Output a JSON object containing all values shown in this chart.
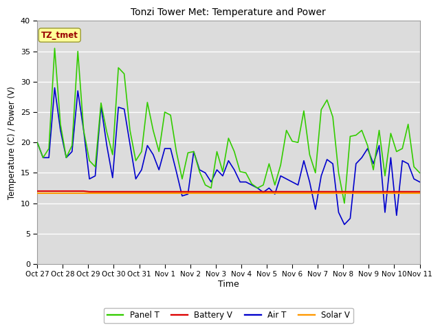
{
  "title": "Tonzi Tower Met: Temperature and Power",
  "xlabel": "Time",
  "ylabel": "Temperature (C) / Power (V)",
  "ylim": [
    0,
    40
  ],
  "yticks": [
    0,
    5,
    10,
    15,
    20,
    25,
    30,
    35,
    40
  ],
  "x_labels": [
    "Oct 27",
    "Oct 28",
    "Oct 29",
    "Oct 30",
    "Oct 31",
    "Nov 1",
    "Nov 2",
    "Nov 3",
    "Nov 4",
    "Nov 5",
    "Nov 6",
    "Nov 7",
    "Nov 8",
    "Nov 9",
    "Nov 10",
    "Nov 11"
  ],
  "bg_color": "#dcdcdc",
  "fig_color": "#ffffff",
  "annotation_text": "TZ_tmet",
  "annotation_bg": "#ffff99",
  "annotation_border": "#999933",
  "annotation_color": "#990000",
  "panel_t_color": "#33cc00",
  "battery_v_color": "#dd0000",
  "air_t_color": "#0000cc",
  "solar_v_color": "#ff9900",
  "line_width": 1.2,
  "panel_t": [
    20.0,
    17.5,
    19.0,
    35.5,
    23.0,
    17.5,
    19.5,
    35.0,
    22.0,
    17.0,
    16.0,
    26.5,
    21.7,
    18.0,
    32.3,
    31.3,
    22.0,
    17.0,
    18.5,
    26.6,
    22.0,
    18.5,
    25.0,
    24.5,
    18.5,
    14.0,
    18.3,
    18.5,
    15.2,
    13.0,
    12.5,
    18.5,
    15.2,
    20.7,
    18.5,
    15.2,
    15.0,
    13.2,
    12.5,
    13.0,
    16.5,
    13.0,
    16.3,
    22.0,
    20.2,
    20.0,
    25.2,
    18.0,
    15.0,
    25.4,
    27.0,
    24.2,
    15.0,
    10.0,
    21.0,
    21.2,
    22.0,
    19.5,
    15.5,
    22.0,
    14.5,
    21.5,
    18.5,
    19.0,
    23.0,
    16.0,
    15.0
  ],
  "battery_v": [
    12.0,
    12.0,
    12.0,
    12.0,
    12.0,
    12.0,
    12.0,
    12.0,
    12.0,
    11.9,
    11.9,
    11.9,
    11.9,
    11.9,
    11.9,
    11.9,
    11.9,
    11.9,
    11.9,
    11.9,
    11.9,
    11.9,
    11.9,
    11.9,
    11.9,
    11.9,
    11.9,
    11.9,
    11.9,
    11.9,
    11.9,
    11.9,
    11.9,
    11.9,
    11.9,
    11.9,
    11.9,
    11.9,
    11.9,
    11.9,
    11.9,
    11.9,
    11.9,
    11.9,
    11.9,
    11.9,
    11.9,
    11.9,
    11.9,
    11.9,
    11.9,
    11.9,
    11.9,
    11.9,
    11.9,
    11.9,
    11.9,
    11.9,
    11.9,
    11.9,
    11.9,
    11.9,
    11.9,
    11.9,
    11.9,
    11.9,
    11.9
  ],
  "air_t": [
    20.0,
    17.5,
    17.5,
    29.0,
    22.0,
    17.5,
    18.5,
    28.5,
    22.0,
    14.0,
    14.5,
    26.0,
    19.5,
    14.2,
    25.8,
    25.5,
    19.7,
    14.0,
    15.5,
    19.5,
    18.0,
    15.5,
    19.0,
    19.0,
    15.2,
    11.2,
    11.5,
    18.5,
    15.5,
    15.0,
    13.5,
    15.5,
    14.5,
    17.0,
    15.5,
    13.5,
    13.5,
    13.0,
    12.5,
    11.8,
    12.5,
    11.5,
    14.5,
    14.0,
    13.5,
    13.0,
    17.0,
    13.5,
    9.0,
    14.5,
    17.2,
    16.5,
    8.5,
    6.5,
    7.5,
    16.5,
    17.5,
    19.0,
    16.5,
    19.5,
    8.5,
    17.5,
    8.0,
    17.0,
    16.5,
    14.0,
    13.5
  ],
  "solar_v": [
    11.7,
    11.7,
    11.7,
    11.7,
    11.7,
    11.7,
    11.7,
    11.7,
    11.7,
    11.7,
    11.7,
    11.7,
    11.7,
    11.7,
    11.7,
    11.7,
    11.7,
    11.7,
    11.7,
    11.7,
    11.7,
    11.7,
    11.7,
    11.7,
    11.7,
    11.7,
    11.7,
    11.7,
    11.7,
    11.7,
    11.7,
    11.7,
    11.7,
    11.7,
    11.7,
    11.7,
    11.7,
    11.7,
    11.7,
    11.7,
    11.7,
    11.7,
    11.7,
    11.7,
    11.7,
    11.7,
    11.7,
    11.7,
    11.7,
    11.7,
    11.7,
    11.7,
    11.7,
    11.7,
    11.7,
    11.7,
    11.7,
    11.7,
    11.7,
    11.7,
    11.7,
    11.7,
    11.7,
    11.7,
    11.7,
    11.7,
    11.7
  ],
  "num_points": 67,
  "figsize": [
    6.4,
    4.8
  ],
  "dpi": 100
}
